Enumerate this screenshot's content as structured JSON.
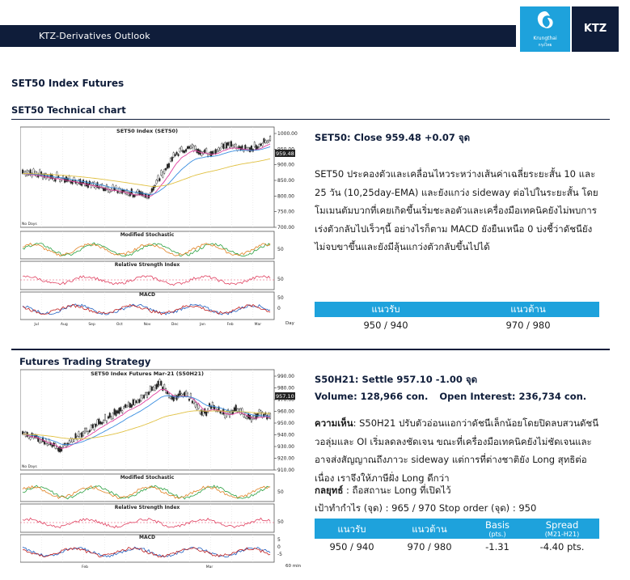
{
  "header": {
    "title": "KTZ-Derivatives Outlook",
    "logo_text": "Krungthai",
    "logo_sub": "กรุงไทย",
    "brand": "KTZ"
  },
  "section": {
    "title": "SET50 Index Futures",
    "technical_title": "SET50 Technical chart",
    "strategy_title": "Futures Trading Strategy"
  },
  "set50": {
    "close": "SET50: Close 959.48 +0.07 จุด",
    "paragraph": "SET50 ประคองตัวและเคลื่อนไหวระหว่างเส้นค่าเฉลี่ยระยะสั้น 10 และ 25 วัน (10,25day-EMA) และยังแกว่ง sideway ต่อไปในระยะสั้น โดยโมเมนตัมบวกที่เคยเกิดขึ้นเริ่มชะลอตัวและเครื่องมือเทคนิคยังไม่พบการเร่งตัวกลับไปเร็วๆนี้ อย่างไรก็ตาม MACD ยังยืนเหนือ 0 บ่งชี้ว่าดัชนียังไม่จบขาขึ้นและยังมีลุ้นแกว่งตัวกลับขึ้นไปได้",
    "levels": {
      "support_label": "แนวรับ",
      "resistance_label": "แนวต้าน",
      "support": "950 / 940",
      "resistance": "970 / 980"
    }
  },
  "futures": {
    "settle": "S50H21: Settle 957.10 -1.00 จุด",
    "volume": "Volume: 128,966 con.",
    "open_interest": "Open Interest: 236,734 con.",
    "view_label": "ความเห็น",
    "view_text": ": S50H21 ปรับตัวอ่อนแอกว่าดัชนีเล็กน้อยโดยปิดลบสวนดัชนี วอลุ่มและ OI เริ่มลดลงชัดเจน ขณะที่เครื่องมือเทคนิคยังไม่ชัดเจนและอาจส่งสัญญาณถึงภาวะ sideway แต่การที่ต่างชาติยัง Long สุทธิต่อเนื่อง เราจึงให้ภาษีฝั่ง Long ดีกว่า",
    "strategy_label": "กลยุทธ์",
    "strategy_text": " : ถือสถานะ Long ที่เปิดไว้",
    "target": "เป้าทำกำไร (จุด) : 965 / 970  Stop order (จุด) : 950",
    "table": {
      "support_label": "แนวรับ",
      "resistance_label": "แนวต้าน",
      "basis_label": "Basis",
      "basis_unit": "(pts.)",
      "spread_label": "Spread",
      "spread_unit": "(M21-H21)",
      "support": "950 / 940",
      "resistance": "970 / 980",
      "basis": "-1.31",
      "spread": "-4.40 pts."
    }
  },
  "chart1": {
    "title": "SET50 Index (SET50)",
    "price_ticks": [
      "1000.00",
      "950.00",
      "900.00",
      "850.00",
      "800.00",
      "750.00",
      "700.00"
    ],
    "last_label": "959.48",
    "stoch_title": "Modified Stochastic",
    "rsi_title": "Relative Strength Index",
    "macd_title": "MACD",
    "ind_tick": "50",
    "macd_tick0": "0",
    "x_labels": [
      "Jul",
      "Aug",
      "Sep",
      "Oct",
      "Nov",
      "Dec",
      "Jan",
      "Feb",
      "Mar"
    ],
    "x_unit": "Day",
    "corner": "No Days"
  },
  "chart2": {
    "title": "SET50 Index Futures Mar-21 (S50H21)",
    "price_ticks": [
      "990.00",
      "980.00",
      "970.00",
      "960.00",
      "950.00",
      "940.00",
      "930.00",
      "920.00",
      "910.00"
    ],
    "last_label": "957.10",
    "stoch_title": "Modified Stochastic",
    "rsi_title": "Relative Strength Index",
    "macd_title": "MACD",
    "ind_tick": "50",
    "macd_ticks": [
      "5",
      "0",
      "-5"
    ],
    "x_labels": [
      "Feb",
      "Mar"
    ],
    "x_unit": "60 min",
    "corner": "No Days"
  }
}
